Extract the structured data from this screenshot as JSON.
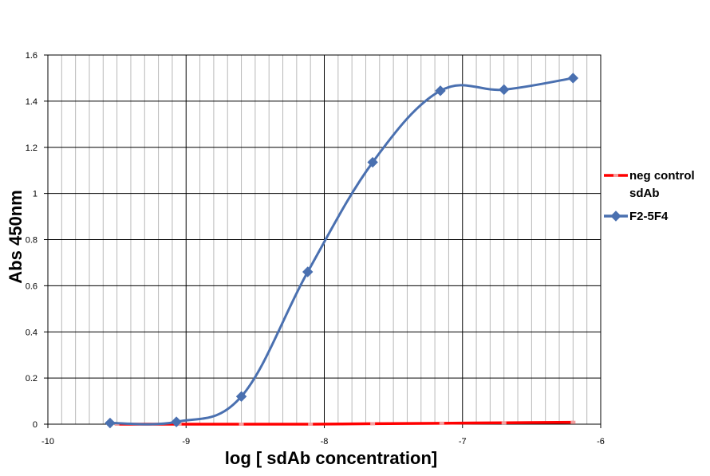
{
  "chart_data": {
    "type": "line",
    "xlabel": "log [ sdAb concentration]",
    "ylabel": "Abs 450nm",
    "xlim": [
      -10,
      -6
    ],
    "ylim": [
      0,
      1.6
    ],
    "x_ticks": [
      "-10",
      "-9",
      "-8",
      "-7",
      "-6"
    ],
    "y_ticks": [
      "0",
      "0.2",
      "0.4",
      "0.6",
      "0.8",
      "1",
      "1.2",
      "1.4",
      "1.6"
    ],
    "grid": true,
    "legend_position": "right",
    "series": [
      {
        "name": "neg control sdAb",
        "name_lines": [
          "neg control",
          "sdAb"
        ],
        "color": "#ff0000",
        "marker": "square",
        "x": [
          -9.5,
          -9.05,
          -8.6,
          -8.1,
          -7.65,
          -7.15,
          -6.7,
          -6.2
        ],
        "y": [
          0.0,
          0.0,
          0.0,
          0.0,
          0.002,
          0.004,
          0.006,
          0.008
        ]
      },
      {
        "name": "F2-5F4",
        "name_lines": [
          "F2-5F4"
        ],
        "color": "#4a70b0",
        "marker": "diamond",
        "x": [
          -9.55,
          -9.07,
          -8.6,
          -8.12,
          -7.65,
          -7.16,
          -6.7,
          -6.2
        ],
        "y": [
          0.005,
          0.01,
          0.12,
          0.66,
          1.135,
          1.445,
          1.45,
          1.5
        ]
      }
    ]
  }
}
